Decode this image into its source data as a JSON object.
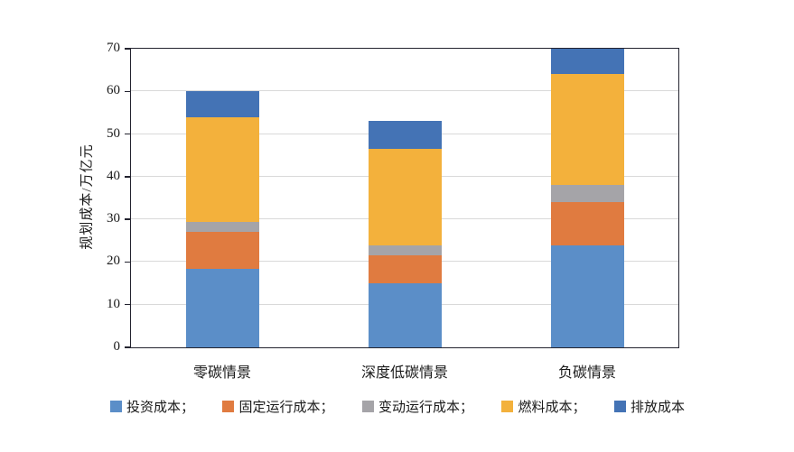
{
  "chart_data": {
    "type": "bar",
    "variant": "stacked",
    "title": "",
    "ylabel": "规划成本/万亿元",
    "xlabel": "",
    "categories": [
      "零碳情景",
      "深度低碳情景",
      "负碳情景"
    ],
    "series": [
      {
        "name": "投资成本；",
        "color": "#5b8ec8",
        "values": [
          18.5,
          15.0,
          24.0
        ]
      },
      {
        "name": "固定运行成本；",
        "color": "#e07b40",
        "values": [
          8.5,
          6.5,
          10.0
        ]
      },
      {
        "name": "变动运行成本；",
        "color": "#a5a4a8",
        "values": [
          2.5,
          2.5,
          4.0
        ]
      },
      {
        "name": "燃料成本；",
        "color": "#f3b13c",
        "values": [
          24.5,
          22.5,
          26.0
        ]
      },
      {
        "name": "排放成本",
        "color": "#4473b5",
        "values": [
          6.0,
          6.5,
          6.0
        ]
      }
    ],
    "stack_totals": [
      60,
      53,
      70
    ],
    "ylim": [
      0,
      70
    ],
    "yticks": [
      0,
      10,
      20,
      30,
      40,
      50,
      60,
      70
    ],
    "grid": true,
    "legend_position": "bottom",
    "axis_color": "#23232f",
    "gridline_color": "#d9d9d9"
  }
}
